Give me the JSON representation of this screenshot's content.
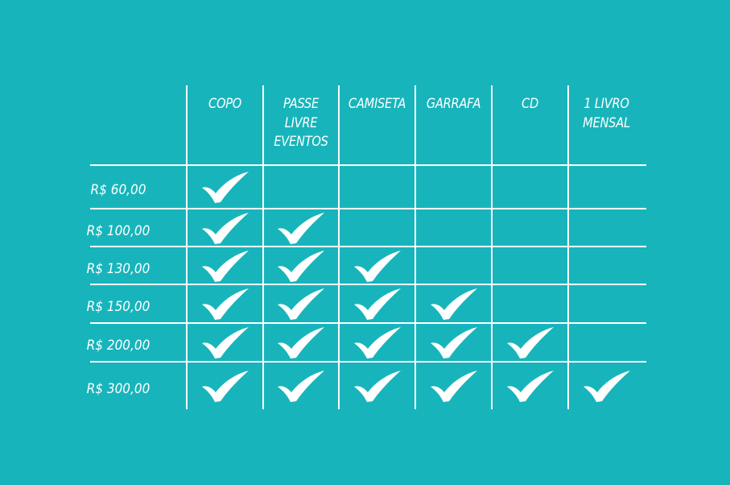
{
  "table": {
    "columns": [
      "COPO",
      "PASSE LIVRE EVENTOS",
      "CAMISETA",
      "GARRAFA",
      "CD",
      "1 LIVRO MENSAL"
    ],
    "rows": [
      {
        "label": "R$ 60,00",
        "included": [
          true,
          false,
          false,
          false,
          false,
          false
        ]
      },
      {
        "label": "R$ 100,00",
        "included": [
          true,
          true,
          false,
          false,
          false,
          false
        ]
      },
      {
        "label": "R$ 130,00",
        "included": [
          true,
          true,
          true,
          false,
          false,
          false
        ]
      },
      {
        "label": "R$ 150,00",
        "included": [
          true,
          true,
          true,
          true,
          false,
          false
        ]
      },
      {
        "label": "R$ 200,00",
        "included": [
          true,
          true,
          true,
          true,
          true,
          false
        ]
      },
      {
        "label": "R$ 300,00",
        "included": [
          true,
          true,
          true,
          true,
          true,
          true
        ]
      }
    ],
    "check_icon": "checkmark-icon"
  },
  "colors": {
    "background": "#17b5bb",
    "foreground": "#ffffff"
  }
}
